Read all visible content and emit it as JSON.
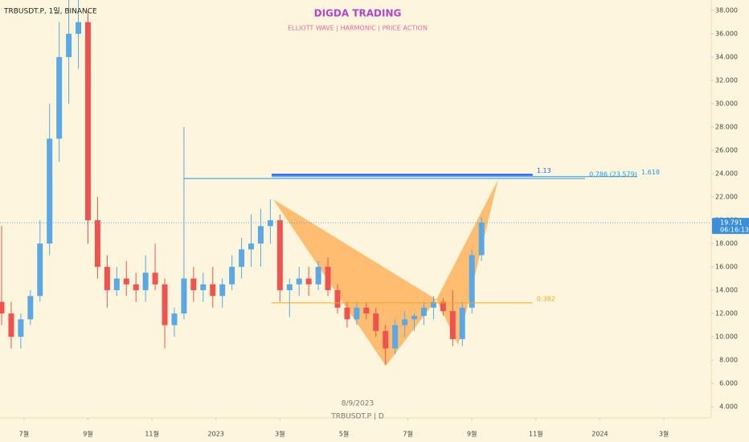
{
  "chart_data": {
    "type": "candlestick",
    "symbol_label": "TRBUSDT.P, 1일, BINANCE",
    "title": "DIGDA TRADING",
    "subtitle": "ELLIOTT WAVE  |  HARMONIC  |  PRICE ACTION",
    "watermark_date": "8/9/2023",
    "watermark_symbol": "TRBUSDT.P  |  D",
    "color_up": "#5aa8e6",
    "color_down": "#ef5350",
    "xlim": [
      -0.75,
      21.48
    ],
    "ylim": [
      3.04,
      38.9
    ],
    "xticks": [
      {
        "value": 0,
        "label": "7월"
      },
      {
        "value": 2,
        "label": "9월"
      },
      {
        "value": 4,
        "label": "11월"
      },
      {
        "value": 6,
        "label": "2023"
      },
      {
        "value": 8,
        "label": "3월"
      },
      {
        "value": 10,
        "label": "5월"
      },
      {
        "value": 12,
        "label": "7월"
      },
      {
        "value": 14,
        "label": "9월"
      },
      {
        "value": 16,
        "label": "11월"
      },
      {
        "value": 18,
        "label": "2024"
      },
      {
        "value": 20,
        "label": "3월"
      }
    ],
    "yticks": [
      {
        "value": 4,
        "label": "4.000"
      },
      {
        "value": 6,
        "label": "6.000"
      },
      {
        "value": 8,
        "label": "8.000"
      },
      {
        "value": 10,
        "label": "10.000"
      },
      {
        "value": 12,
        "label": "12.000"
      },
      {
        "value": 14,
        "label": "14.000"
      },
      {
        "value": 16,
        "label": "16.000"
      },
      {
        "value": 18,
        "label": "18.000"
      },
      {
        "value": 20,
        "label": "20.000"
      },
      {
        "value": 22,
        "label": "22.000"
      },
      {
        "value": 24,
        "label": "24.000"
      },
      {
        "value": 26,
        "label": "26.000"
      },
      {
        "value": 28,
        "label": "28.000"
      },
      {
        "value": 30,
        "label": "30.000"
      },
      {
        "value": 32,
        "label": "32.000"
      },
      {
        "value": 34,
        "label": "34.000"
      },
      {
        "value": 36,
        "label": "36.000"
      },
      {
        "value": 38,
        "label": "38.000"
      }
    ],
    "candles": {
      "x": [
        -0.7,
        -0.4,
        -0.1,
        0.2,
        0.5,
        0.8,
        1.1,
        1.4,
        1.7,
        2.0,
        2.3,
        2.6,
        2.9,
        3.2,
        3.5,
        3.8,
        4.1,
        4.4,
        4.7,
        5.0,
        5.3,
        5.6,
        5.9,
        6.2,
        6.5,
        6.8,
        7.1,
        7.4,
        7.7,
        8.0,
        8.3,
        8.6,
        8.9,
        9.2,
        9.5,
        9.8,
        10.1,
        10.4,
        10.7,
        11.0,
        11.3,
        11.6,
        11.9,
        12.2,
        12.5,
        12.8,
        13.1,
        13.4,
        13.7,
        14.0,
        14.3
      ],
      "open": [
        13,
        12,
        10,
        11.5,
        13.5,
        18,
        27,
        34,
        36,
        37,
        20,
        16,
        14,
        15,
        14.5,
        14,
        15.5,
        14.5,
        11,
        12,
        15,
        14,
        14.5,
        13.5,
        14.5,
        16,
        17.5,
        18,
        19.5,
        20,
        14,
        14.5,
        15,
        14.5,
        16,
        14,
        12.5,
        11.5,
        12.5,
        12,
        10.5,
        9,
        11,
        11.5,
        11.8,
        12.5,
        13,
        12.2,
        9.8,
        12.5,
        17
      ],
      "high": [
        19.5,
        13,
        12,
        14,
        20,
        30,
        37,
        39,
        39,
        38,
        22,
        17,
        16,
        16.5,
        15.5,
        17,
        18,
        15,
        12.5,
        28,
        16,
        15.5,
        16,
        15,
        17,
        18.5,
        20.5,
        21,
        21.8,
        20.5,
        15,
        16,
        16,
        16.5,
        16.8,
        14.5,
        13,
        13,
        13,
        12.5,
        11,
        11.5,
        12.2,
        12,
        13,
        13.5,
        13.3,
        14,
        13,
        17.5,
        20.3
      ],
      "low": [
        11,
        9,
        9,
        11,
        13,
        17,
        25,
        30,
        33,
        18,
        15,
        12.5,
        13.5,
        13.5,
        13,
        13,
        14,
        9,
        10,
        11.5,
        13,
        13,
        12.5,
        12.5,
        14,
        15,
        16,
        16,
        18,
        13,
        11.7,
        13.5,
        13.5,
        14,
        13.5,
        12,
        10.8,
        11,
        11.5,
        10,
        7.6,
        8.5,
        10,
        10.5,
        11,
        11.5,
        11.8,
        9.2,
        9.2,
        12,
        16.5
      ],
      "close": [
        12,
        10,
        11.5,
        13.5,
        18,
        27,
        34,
        36,
        37,
        20,
        16,
        14,
        15,
        14.5,
        14,
        15.5,
        14.5,
        11,
        12,
        15,
        14,
        14.5,
        13.5,
        14.5,
        16,
        17.5,
        18,
        19.5,
        20,
        14,
        14.5,
        15,
        14.5,
        16,
        14,
        12.5,
        11.5,
        12.5,
        12,
        10.5,
        9,
        11,
        11.5,
        11.8,
        12.5,
        13,
        12.2,
        9.8,
        12.5,
        17,
        19.8
      ]
    },
    "harmonic": {
      "color": "#ffa94d",
      "x": [
        7.79,
        11.31,
        12.89,
        13.57,
        14.82
      ],
      "y": [
        21.8,
        7.5,
        13.2,
        9.3,
        23.5
      ]
    },
    "levels": [
      {
        "label": "1.13",
        "value": 23.9,
        "start": 7.74,
        "end": 15.9,
        "color": "#2962ff",
        "width": 2.5
      },
      {
        "label": "0.786 (23.579)",
        "value": 23.579,
        "start": 5.0,
        "end": 17.54,
        "color": "#2196f3",
        "width": 1
      },
      {
        "label": "1.618",
        "value": 23.75,
        "start": 7.74,
        "end": 19.17,
        "color": "#2196f3",
        "width": 1
      },
      {
        "label": "0.382",
        "value": 12.91,
        "start": 7.74,
        "end": 15.9,
        "color": "#f5a623",
        "width": 1
      }
    ],
    "last_price": 19.791,
    "countdown": "06:16:13"
  }
}
